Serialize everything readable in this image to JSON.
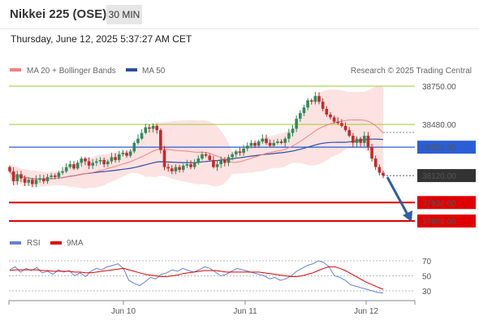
{
  "header": {
    "title": "Nikkei 225 (OSE)",
    "timeframe": "30 MIN",
    "timestamp": "Thursday, June 12, 2025 5:37:27 AM CET"
  },
  "legend": {
    "ma20_label": "MA 20 + Bollinger Bands",
    "ma50_label": "MA 50",
    "ma20_color": "#f28080",
    "ma50_color": "#2d4e9f",
    "credit": "Research © 2025 Trading Central"
  },
  "rsi_legend": {
    "rsi_label": "RSI",
    "ma9_label": "9MA",
    "rsi_color": "#6680d0",
    "ma9_color": "#e00000"
  },
  "chart_data": {
    "type": "candlestick",
    "price_ylim": [
      37745,
      38865
    ],
    "levels": [
      {
        "value": 38750,
        "label": "38750.00",
        "color": "#9acd32",
        "kind": "resistance"
      },
      {
        "value": 38480,
        "label": "38480.00",
        "color": "#9acd32",
        "kind": "resistance"
      },
      {
        "value": 38320,
        "label": "38320.00",
        "color": "#2a5ed6",
        "kind": "pivot"
      },
      {
        "value": 38120,
        "label": "38120.00",
        "color": "#333333",
        "kind": "last"
      },
      {
        "value": 37930,
        "label": "37930.00",
        "color": "#e00000",
        "kind": "support"
      },
      {
        "value": 37800,
        "label": "37800.00",
        "color": "#e00000",
        "kind": "support"
      }
    ],
    "x_ticks": [
      "Jun 10",
      "Jun 11",
      "Jun 12"
    ],
    "candles_close": [
      38150,
      38080,
      38130,
      38100,
      38070,
      38090,
      38060,
      38090,
      38100,
      38080,
      38110,
      38120,
      38110,
      38140,
      38150,
      38180,
      38200,
      38170,
      38210,
      38240,
      38220,
      38190,
      38210,
      38220,
      38230,
      38200,
      38220,
      38250,
      38230,
      38270,
      38280,
      38260,
      38290,
      38350,
      38380,
      38420,
      38460,
      38450,
      38470,
      38440,
      38300,
      38180,
      38170,
      38150,
      38180,
      38160,
      38190,
      38200,
      38180,
      38210,
      38240,
      38270,
      38260,
      38230,
      38180,
      38200,
      38230,
      38210,
      38250,
      38270,
      38290,
      38280,
      38310,
      38330,
      38350,
      38330,
      38360,
      38380,
      38350,
      38330,
      38350,
      38360,
      38350,
      38380,
      38420,
      38450,
      38520,
      38560,
      38600,
      38650,
      38640,
      38680,
      38640,
      38590,
      38550,
      38530,
      38500,
      38490,
      38470,
      38440,
      38400,
      38350,
      38380,
      38350,
      38400,
      38320,
      38240,
      38180,
      38140,
      38120
    ],
    "rsi": {
      "ylim": [
        15,
        80
      ],
      "levels": [
        70,
        50,
        30
      ],
      "rsi_values": [
        58,
        62,
        55,
        60,
        57,
        61,
        54,
        56,
        52,
        58,
        55,
        57,
        50,
        54,
        49,
        56,
        60,
        58,
        62,
        64,
        66,
        60,
        44,
        40,
        37,
        42,
        48,
        46,
        52,
        54,
        58,
        56,
        60,
        57,
        55,
        58,
        62,
        60,
        55,
        50,
        52,
        56,
        60,
        58,
        56,
        54,
        52,
        50,
        46,
        48,
        44,
        46,
        50,
        56,
        60,
        64,
        66,
        70,
        68,
        62,
        50,
        48,
        44,
        38,
        36,
        34,
        32,
        30,
        28,
        27
      ],
      "ma9_values": [
        57,
        58,
        58,
        58,
        58,
        58,
        57,
        57,
        56,
        56,
        56,
        56,
        55,
        55,
        54,
        54,
        55,
        56,
        57,
        58,
        59,
        60,
        58,
        56,
        54,
        52,
        51,
        50,
        49,
        49,
        50,
        51,
        53,
        54,
        55,
        56,
        57,
        57,
        57,
        56,
        55,
        55,
        55,
        55,
        55,
        55,
        55,
        54,
        53,
        52,
        51,
        50,
        49,
        49,
        50,
        52,
        54,
        57,
        60,
        62,
        62,
        60,
        57,
        53,
        49,
        45,
        41,
        38,
        35,
        32
      ]
    }
  }
}
